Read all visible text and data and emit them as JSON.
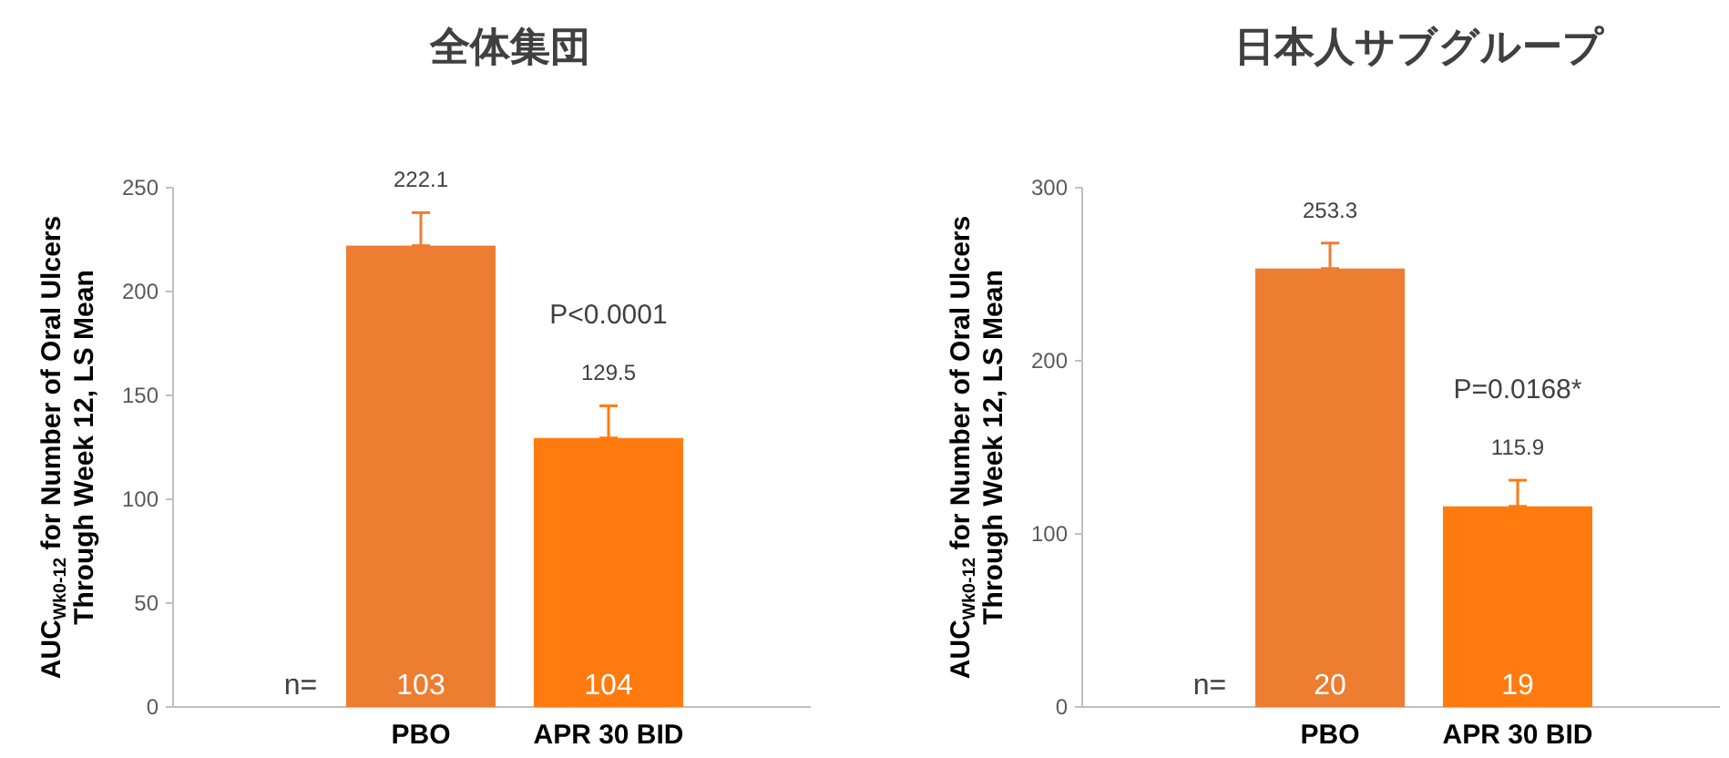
{
  "chart_data": [
    {
      "type": "bar",
      "title": "全体集団",
      "ylabel": "AUC$_{Wk0-12}$ for Number of Oral Ulcers Through Week 12, LS Mean",
      "categories": [
        "PBO",
        "APR 30 BID"
      ],
      "values": [
        222.1,
        129.5
      ],
      "colors": [
        "#ed7d31",
        "#ff7b0f"
      ],
      "errors": [
        [
          222.1,
          238
        ],
        [
          129.5,
          145
        ]
      ],
      "ylim": [
        0,
        250
      ],
      "yticks": [
        0,
        50,
        100,
        150,
        200,
        250
      ],
      "data_labels": true,
      "annotations": [
        "n=",
        "103",
        "104",
        "P<0.0001"
      ]
    },
    {
      "type": "bar",
      "title": "日本人サブグループ",
      "ylabel": "AUC$_{Wk0-12}$ for Number of Oral Ulcers Through Week 12, LS Mean",
      "categories": [
        "PBO",
        "APR 30 BID"
      ],
      "values": [
        253.3,
        115.9
      ],
      "colors": [
        "#ed7d31",
        "#ff7b0f"
      ],
      "errors": [
        [
          253.3,
          268
        ],
        [
          115.9,
          131
        ]
      ],
      "ylim": [
        0,
        300
      ],
      "yticks": [
        0,
        100,
        200,
        300
      ],
      "data_labels": true,
      "annotations": [
        "n=",
        "20",
        "19",
        "P=0.0168*"
      ]
    }
  ]
}
